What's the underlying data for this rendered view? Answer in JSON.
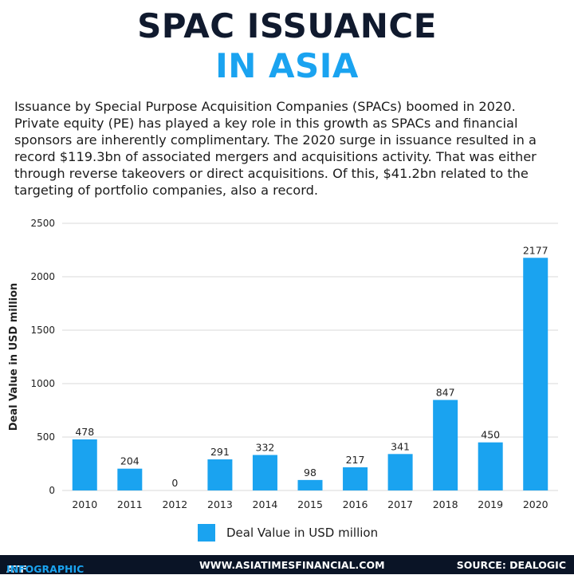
{
  "header": {
    "title_line1": "SPAC ISSUANCE",
    "title_line2": "IN ASIA"
  },
  "intro_text": "Issuance by Special Purpose Acquisition Companies (SPACs) boomed in 2020. Private equity (PE) has played a key role in this growth as SPACs and financial sponsors are inherently complimentary. The 2020 surge in issuance resulted in a record $119.3bn of associated mergers and acquisitions activity. That was either through reverse takeovers or direct acquisitions. Of this, $41.2bn related to the targeting of portfolio companies, also a record.",
  "chart_data": {
    "type": "bar",
    "categories": [
      "2010",
      "2011",
      "2012",
      "2013",
      "2014",
      "2015",
      "2016",
      "2017",
      "2018",
      "2019",
      "2020"
    ],
    "series": [
      {
        "name": "Deal Value in USD million",
        "values": [
          478,
          204,
          0,
          291,
          332,
          98,
          217,
          341,
          847,
          450,
          2177
        ]
      }
    ],
    "data_labels": [
      "478",
      "204",
      "0",
      "291",
      "332",
      "98",
      "217",
      "341",
      "847",
      "450",
      "2177"
    ],
    "ylabel": "Deal Value in USD million",
    "ylim": [
      0,
      2500
    ],
    "yticks": [
      "0",
      "500",
      "1000",
      "1500",
      "2000",
      "2500"
    ],
    "grid": true,
    "legend": "bottom-center",
    "bar_color": "#1aa3f0"
  },
  "legend": {
    "label": "Deal Value in USD million"
  },
  "footer": {
    "left_brand": "ATF",
    "left_accent": "INFOGRAPHIC",
    "center": "WWW.ASIATIMESFINANCIAL.COM",
    "right": "SOURCE: DEALOGIC"
  },
  "colors": {
    "title_dark": "#101a2e",
    "title_accent": "#1aa3f0",
    "bar": "#1aa3f0",
    "footer_bg": "#0a1426"
  }
}
